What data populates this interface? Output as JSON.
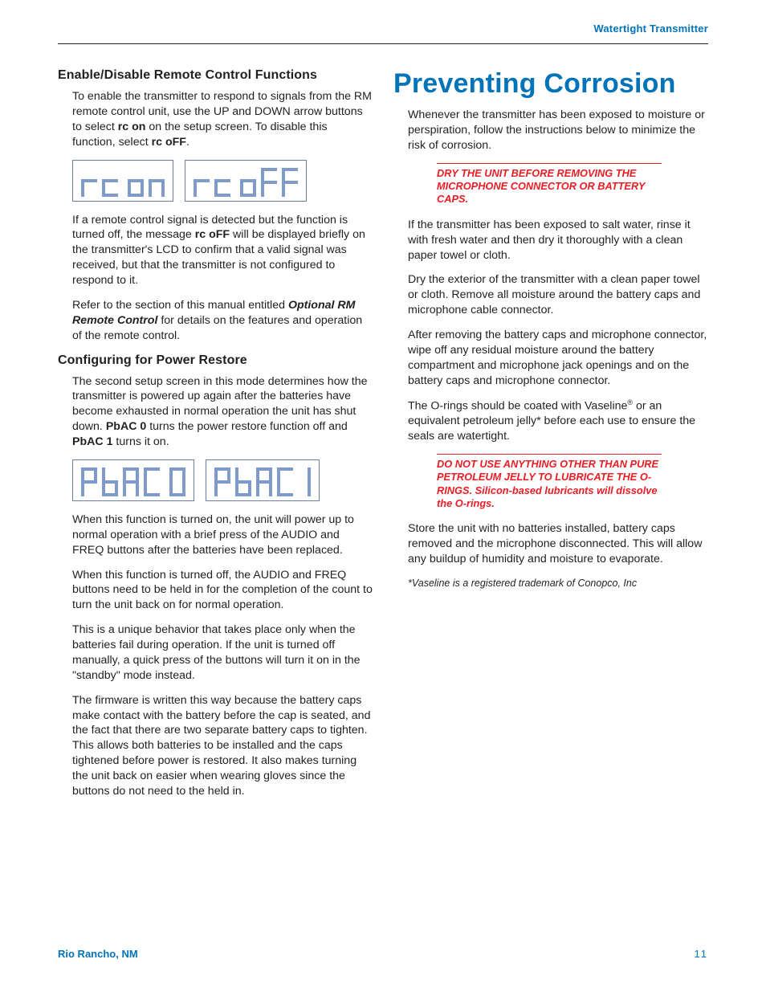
{
  "colors": {
    "text": "#231f20",
    "blue": "#0073b9",
    "red": "#ed1c24",
    "lcd_segment": "#7f9bc9",
    "lcd_border": "#6b7fa3",
    "background": "#ffffff"
  },
  "fonts": {
    "body_size_pt": 10.5,
    "h1_size_pt": 26,
    "h3_size_pt": 12,
    "h1_family": "Arial Narrow Condensed Bold",
    "body_family": "Helvetica"
  },
  "header": {
    "title": "Watertight Transmitter"
  },
  "footer": {
    "location": "Rio Rancho, NM",
    "page_number": "11"
  },
  "left": {
    "s1": {
      "heading": "Enable/Disable Remote Control Functions",
      "p1a": "To enable the transmitter to respond to signals from the RM remote control unit, use the UP and DOWN arrow buttons to select ",
      "p1b": "rc on",
      "p1c": " on the setup screen. To disable this function, select ",
      "p1d": "rc oFF",
      "p1e": ".",
      "lcd": {
        "left_text": "rc  on",
        "right_text": "rc  oFF"
      },
      "p2a": "If a remote control signal is detected but the function is turned off, the message ",
      "p2b": "rc oFF",
      "p2c": " will be displayed briefly on the transmitter's LCD to confirm that a valid signal was received, but that the transmitter is not configured to respond to it.",
      "p3a": "Refer to the section of this manual entitled ",
      "p3b": "Optional RM Remote Control",
      "p3c": " for details on the features and operation of the remote control."
    },
    "s2": {
      "heading": "Configuring for Power Restore",
      "p1a": "The second setup screen in this mode determines how the transmitter is powered up again after the batteries have become exhausted in normal operation the unit has shut down. ",
      "p1b": "PbAC 0",
      "p1c": " turns the power restore function off and ",
      "p1d": "PbAC 1",
      "p1e": " turns it on.",
      "lcd": {
        "left_text": "PbAC 0",
        "right_text": "PbAC 1"
      },
      "p2": "When this function is turned on, the unit will power up to normal operation with a brief press of the AUDIO and FREQ buttons after the batteries have been replaced.",
      "p3": "When this function is turned off, the AUDIO and FREQ buttons need to be held in for the completion of the count to turn the unit back on for normal operation.",
      "p4": "This is a unique behavior that takes place only when the batteries fail during operation. If the unit is turned off manually, a quick press of the buttons will turn it on in the \"standby\" mode instead.",
      "p5": "The firmware is written this way because the battery caps make contact with the battery before the cap is seated, and the fact that there are two separate battery caps to tighten. This allows both batteries to be installed and the caps tightened before power is restored. It also makes turning the unit back on easier when wearing gloves since the buttons do not need to the held in."
    }
  },
  "right": {
    "h1": "Preventing Corrosion",
    "p1": "Whenever the transmitter has been exposed to moisture or perspiration, follow the instructions below to minimize the risk of corrosion.",
    "warn1": "DRY THE UNIT BEFORE REMOVING THE MICROPHONE CONNECTOR OR BATTERY CAPS.",
    "p2": "If the transmitter has been exposed to salt water, rinse it with fresh water and then dry it thoroughly with a clean paper towel or cloth.",
    "p3": "Dry the exterior of the transmitter with a clean paper towel or cloth. Remove all moisture around the battery caps and microphone cable connector.",
    "p4": "After removing the battery caps and microphone connector, wipe off any residual moisture around the battery compartment and microphone jack openings and on the battery caps and microphone connector.",
    "p5a": "The O-rings should be coated with Vaseline",
    "p5reg": "®",
    "p5b": " or an equivalent petroleum jelly* before each use to ensure the seals are watertight.",
    "warn2": "DO NOT USE ANYTHING OTHER THAN PURE PETROLEUM JELLY TO LUBRICATE THE O-RINGS. Silicon-based lubricants will dissolve the O-rings.",
    "p6": "Store the unit with no batteries installed, battery caps removed and the microphone disconnected. This will allow any buildup of humidity and moisture to evaporate.",
    "footnote": "*Vaseline is a registered trademark of Conopco, Inc"
  }
}
